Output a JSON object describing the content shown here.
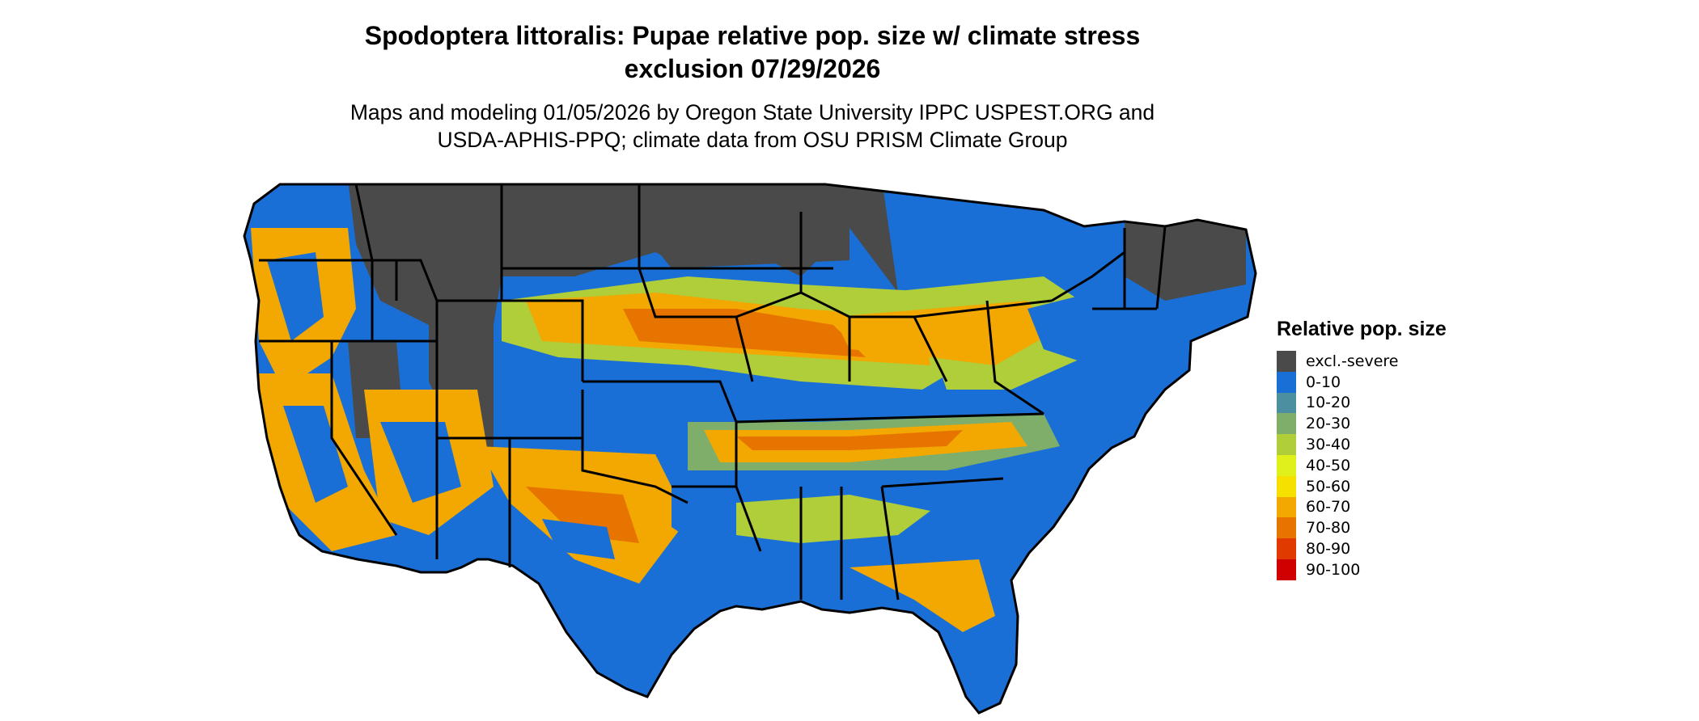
{
  "title": {
    "line1": "Spodoptera littoralis: Pupae relative pop. size w/ climate stress",
    "line2": "exclusion 07/29/2026"
  },
  "subtitle": {
    "line1": "Maps and modeling 01/05/2026 by Oregon State University IPPC USPEST.ORG and",
    "line2": "USDA-APHIS-PPQ; climate data from OSU PRISM Climate Group"
  },
  "legend": {
    "title": "Relative pop. size",
    "items": [
      {
        "label": "excl.-severe",
        "color": "#4a4a4a"
      },
      {
        "label": "0-10",
        "color": "#1a6fd6"
      },
      {
        "label": "10-20",
        "color": "#4b8fa0"
      },
      {
        "label": "20-30",
        "color": "#7fae6a"
      },
      {
        "label": "30-40",
        "color": "#b0cd3a"
      },
      {
        "label": "40-50",
        "color": "#dff01a"
      },
      {
        "label": "50-60",
        "color": "#f5e000"
      },
      {
        "label": "60-70",
        "color": "#f2a800"
      },
      {
        "label": "70-80",
        "color": "#e87400"
      },
      {
        "label": "80-90",
        "color": "#e03a00"
      },
      {
        "label": "90-100",
        "color": "#d00000"
      }
    ]
  }
}
